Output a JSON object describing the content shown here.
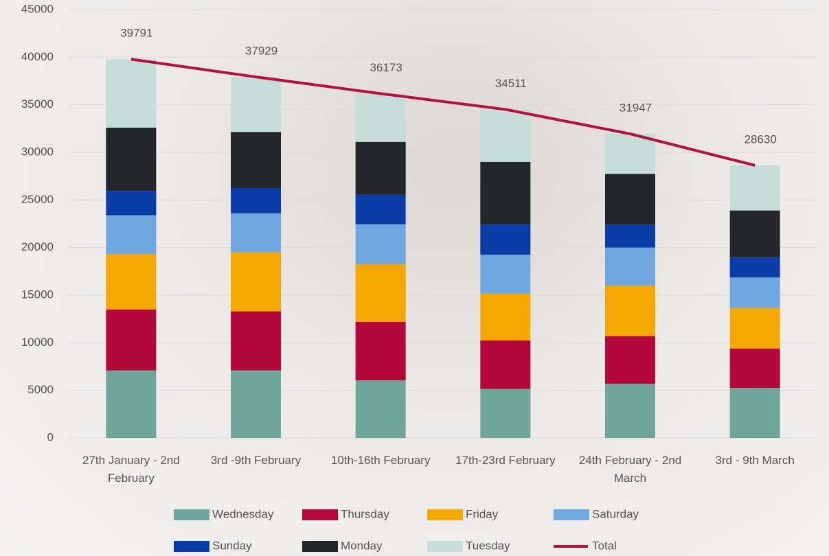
{
  "chart_data": {
    "type": "bar",
    "stacked": true,
    "categories": [
      "27th January - 2nd February",
      "3rd -9th February",
      "10th-16th February",
      "17th-23rd February",
      "24th February - 2nd March",
      "3rd - 9th March"
    ],
    "series": [
      {
        "name": "Wednesday",
        "color": "#70a59c",
        "values": [
          7100,
          7100,
          6050,
          5150,
          5700,
          5250
        ]
      },
      {
        "name": "Thursday",
        "color": "#b5083a",
        "values": [
          6400,
          6200,
          6150,
          5100,
          5000,
          4150
        ]
      },
      {
        "name": "Friday",
        "color": "#f5a800",
        "values": [
          5800,
          6200,
          6050,
          4900,
          5300,
          4250
        ]
      },
      {
        "name": "Saturday",
        "color": "#6fa8e0",
        "values": [
          4100,
          4100,
          4200,
          4100,
          4000,
          3200
        ]
      },
      {
        "name": "Sunday",
        "color": "#0a3ca8",
        "values": [
          2550,
          2650,
          3100,
          3200,
          2400,
          2100
        ]
      },
      {
        "name": "Monday",
        "color": "#23272c",
        "values": [
          6650,
          5900,
          5550,
          6550,
          5350,
          4950
        ]
      },
      {
        "name": "Tuesday",
        "color": "#c5dcd8",
        "values": [
          7191,
          5779,
          5073,
          5511,
          4197,
          4730
        ]
      },
      {
        "name": "Total",
        "color": "#b5103f",
        "type": "line",
        "values": [
          39791,
          37929,
          36173,
          34511,
          31947,
          28630
        ]
      }
    ],
    "ylim": [
      0,
      45000
    ],
    "yticks": [
      0,
      5000,
      10000,
      15000,
      20000,
      25000,
      30000,
      35000,
      40000,
      45000
    ],
    "grid": true
  }
}
